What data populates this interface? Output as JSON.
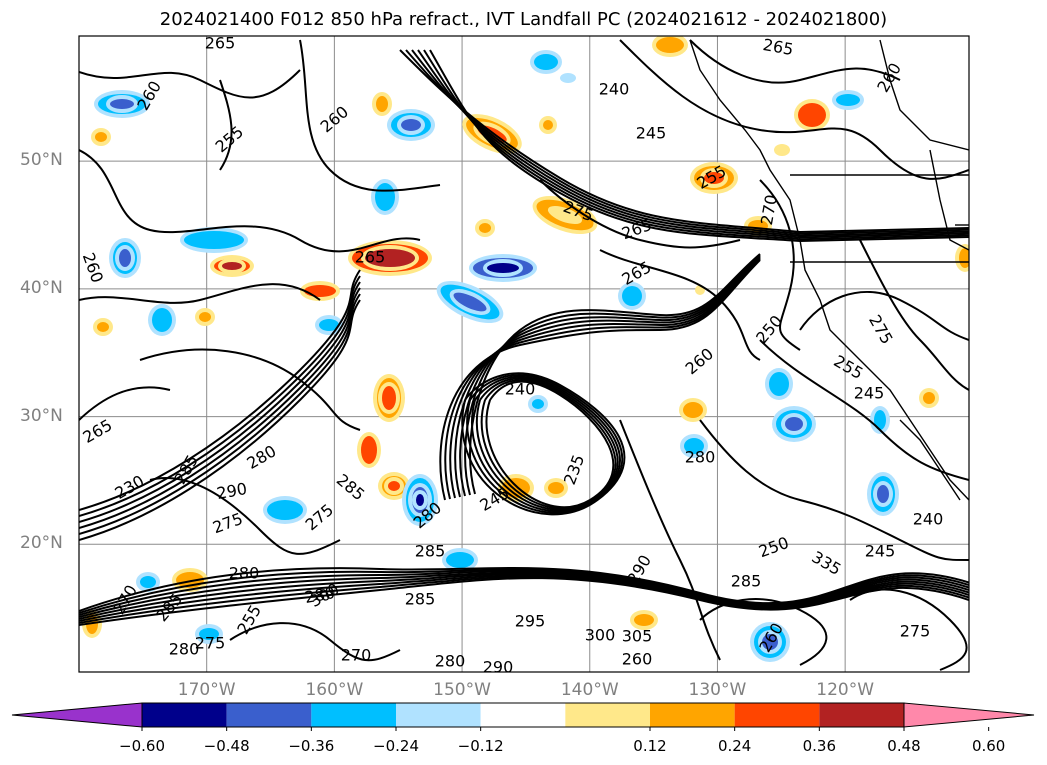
{
  "title": "2024021400 F012 850 hPa refract., IVT Landfall PC (2024021612 - 2024021800)",
  "map": {
    "lat_labels": [
      {
        "text": "50°N",
        "lat": 50
      },
      {
        "text": "40°N",
        "lat": 40
      },
      {
        "text": "30°N",
        "lat": 30
      },
      {
        "text": "20°N",
        "lat": 20
      }
    ],
    "lon_labels": [
      {
        "text": "170°W",
        "lon": -170
      },
      {
        "text": "160°W",
        "lon": -160
      },
      {
        "text": "150°W",
        "lon": -150
      },
      {
        "text": "140°W",
        "lon": -140
      },
      {
        "text": "130°W",
        "lon": -130
      },
      {
        "text": "120°W",
        "lon": -120
      }
    ],
    "contour_labels": [
      "265",
      "260",
      "255",
      "260",
      "240",
      "245",
      "265",
      "260",
      "255",
      "270",
      "275",
      "265",
      "265",
      "265",
      "260",
      "250",
      "275",
      "260",
      "255",
      "245",
      "240",
      "265",
      "280",
      "235",
      "245",
      "230",
      "280",
      "285",
      "290",
      "275",
      "275",
      "285",
      "280",
      "285",
      "280",
      "270",
      "285",
      "280",
      "275",
      "280",
      "250",
      "240",
      "245",
      "285",
      "290",
      "295",
      "300",
      "305",
      "260",
      "255",
      "285",
      "280",
      "290",
      "300",
      "270",
      "335",
      "260",
      "275"
    ],
    "legend_colors": {
      "under": "#9932cc",
      "bins": [
        "#00008b",
        "#3a5fcd",
        "#00bfff",
        "#b0e2ff",
        "#ffffff",
        "#ffe88a",
        "#ffa500",
        "#ff4500",
        "#b22222"
      ],
      "over": "#ff88aa"
    },
    "colorbar_ticks": [
      "−0.60",
      "−0.48",
      "−0.36",
      "−0.24",
      "−0.12",
      "0.12",
      "0.24",
      "0.36",
      "0.48",
      "0.60"
    ]
  }
}
